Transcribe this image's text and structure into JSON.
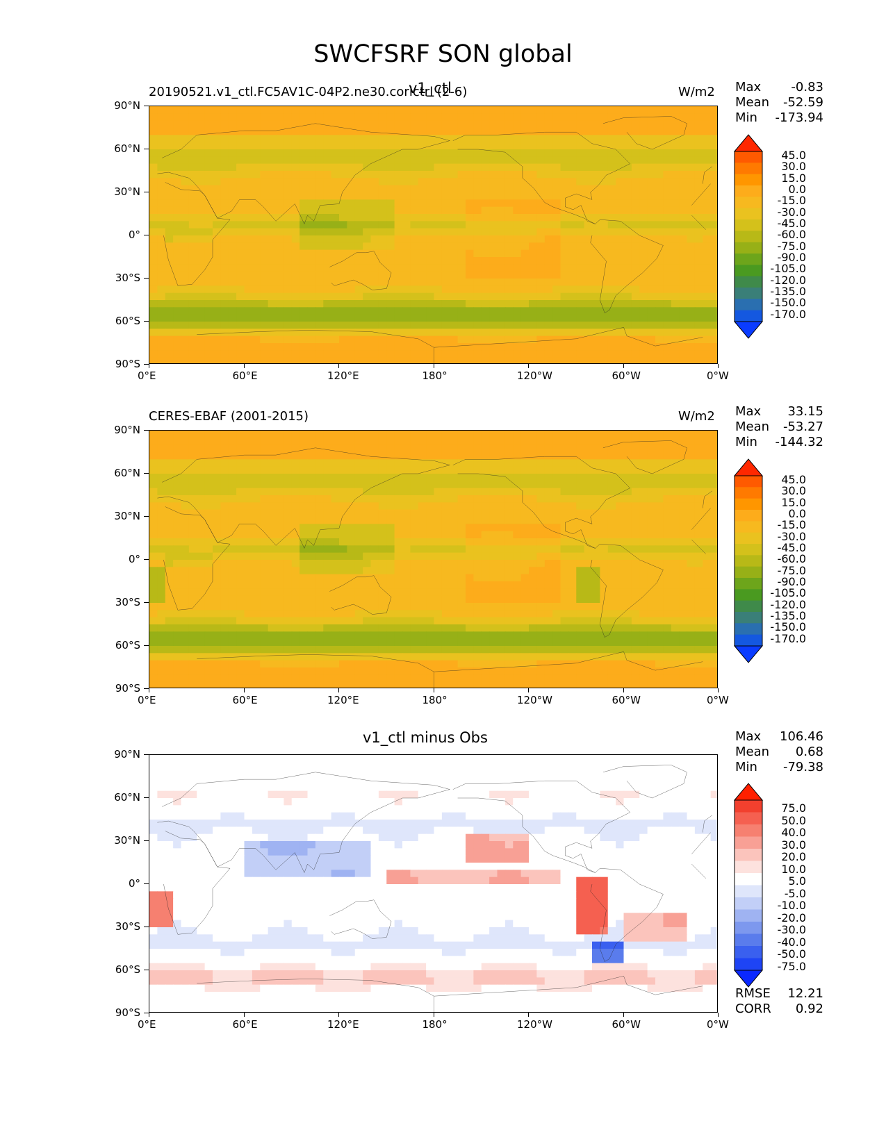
{
  "figure": {
    "title": "SWCFSRF SON global"
  },
  "axes": {
    "lat_ticks": [
      "90°N",
      "60°N",
      "30°N",
      "0°",
      "30°S",
      "60°S",
      "90°S"
    ],
    "lon_ticks": [
      "0°E",
      "60°E",
      "120°E",
      "180°",
      "120°W",
      "60°W",
      "0°W"
    ]
  },
  "panels": [
    {
      "left_title": "20190521.v1_ctl.FC5AV1C-04P2.ne30.corictrl (2-6)",
      "center_title": "v1_ctl",
      "units": "W/m2",
      "stats": {
        "max_label": "Max",
        "max": "-0.83",
        "mean_label": "Mean",
        "mean": "-52.59",
        "min_label": "Min",
        "min": "-173.94"
      },
      "colorbar_levels": [
        "45.0",
        "30.0",
        "15.0",
        "0.0",
        "-15.0",
        "-30.0",
        "-45.0",
        "-60.0",
        "-75.0",
        "-90.0",
        "-105.0",
        "-120.0",
        "-135.0",
        "-150.0",
        "-170.0"
      ],
      "colorbar_colors": [
        "#ff2800",
        "#ff5a00",
        "#ff7a00",
        "#ff9600",
        "#fdac1b",
        "#f7b91f",
        "#eac21f",
        "#d4c11b",
        "#b8b917",
        "#97b017",
        "#6da51b",
        "#4a9a20",
        "#3f8a4a",
        "#3a7f78",
        "#2a6fb0",
        "#1458e0",
        "#0a3cff"
      ],
      "field": "model"
    },
    {
      "left_title": "CERES-EBAF (2001-2015)",
      "center_title": "",
      "units": "W/m2",
      "stats": {
        "max_label": "Max",
        "max": "33.15",
        "mean_label": "Mean",
        "mean": "-53.27",
        "min_label": "Min",
        "min": "-144.32"
      },
      "colorbar_levels": [
        "45.0",
        "30.0",
        "15.0",
        "0.0",
        "-15.0",
        "-30.0",
        "-45.0",
        "-60.0",
        "-75.0",
        "-90.0",
        "-105.0",
        "-120.0",
        "-135.0",
        "-150.0",
        "-170.0"
      ],
      "colorbar_colors": [
        "#ff2800",
        "#ff5a00",
        "#ff7a00",
        "#ff9600",
        "#fdac1b",
        "#f7b91f",
        "#eac21f",
        "#d4c11b",
        "#b8b917",
        "#97b017",
        "#6da51b",
        "#4a9a20",
        "#3f8a4a",
        "#3a7f78",
        "#2a6fb0",
        "#1458e0",
        "#0a3cff"
      ],
      "field": "obs"
    },
    {
      "left_title": "",
      "center_title": "v1_ctl minus Obs",
      "units": "",
      "stats": {
        "max_label": "Max",
        "max": "106.46",
        "mean_label": "Mean",
        "mean": "0.68",
        "min_label": "Min",
        "min": "-79.38"
      },
      "colorbar_levels": [
        "75.0",
        "50.0",
        "40.0",
        "30.0",
        "20.0",
        "10.0",
        "5.0",
        "-5.0",
        "-10.0",
        "-20.0",
        "-30.0",
        "-40.0",
        "-50.0",
        "-75.0"
      ],
      "colorbar_colors": [
        "#ff2000",
        "#f2402e",
        "#f56050",
        "#f68070",
        "#f8a095",
        "#fbc4bc",
        "#fde2de",
        "#ffffff",
        "#dfe6fb",
        "#c2cff7",
        "#9fb3f2",
        "#7d98ee",
        "#5a7cec",
        "#3a60ef",
        "#1e44f5",
        "#0a28ff"
      ],
      "field": "diff",
      "rmse_label": "RMSE",
      "rmse": "12.21",
      "corr_label": "CORR",
      "corr": "0.92"
    }
  ]
}
